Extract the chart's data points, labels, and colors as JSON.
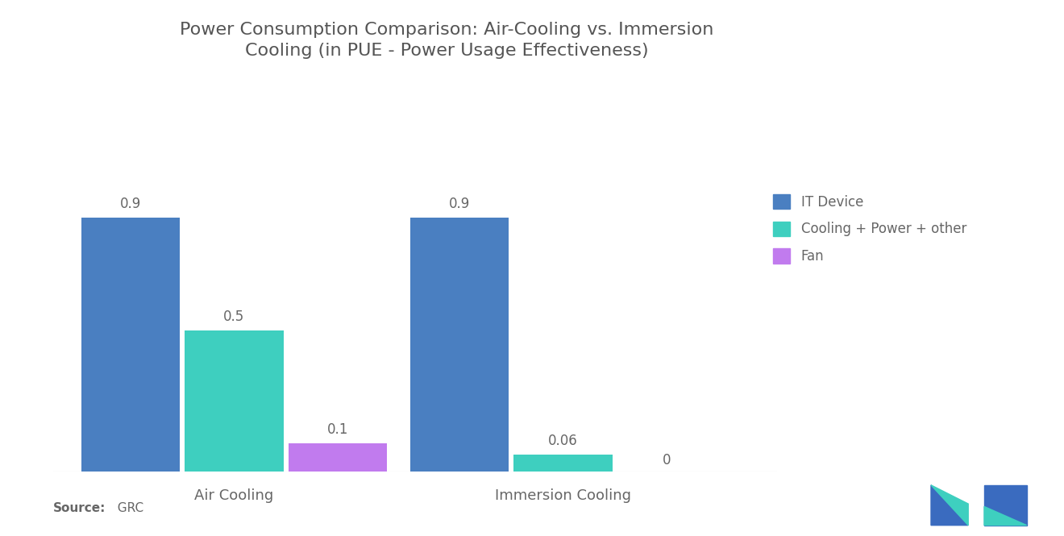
{
  "title": "Power Consumption Comparison: Air-Cooling vs. Immersion\nCooling (in PUE - Power Usage Effectiveness)",
  "groups": [
    "Air Cooling",
    "Immersion Cooling"
  ],
  "categories": [
    "IT Device",
    "Cooling + Power + other",
    "Fan"
  ],
  "values": [
    [
      0.9,
      0.5,
      0.1
    ],
    [
      0.9,
      0.06,
      0
    ]
  ],
  "bar_colors": [
    "#4a7fc1",
    "#3ecfbf",
    "#c17bee"
  ],
  "bar_width": 0.12,
  "ylim": [
    0,
    1.1
  ],
  "value_labels": [
    [
      "0.9",
      "0.5",
      "0.1"
    ],
    [
      "0.9",
      "0.06",
      "0"
    ]
  ],
  "source_bold": "Source:",
  "source_rest": "  GRC",
  "background_color": "#ffffff",
  "title_color": "#555555",
  "label_color": "#666666",
  "legend_labels": [
    "IT Device",
    "Cooling + Power + other",
    "Fan"
  ],
  "title_fontsize": 16,
  "label_fontsize": 13,
  "value_fontsize": 12,
  "legend_fontsize": 12
}
